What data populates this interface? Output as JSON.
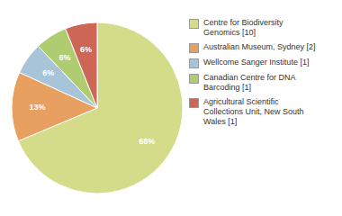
{
  "chart_data": {
    "type": "pie",
    "categories": [
      "Centre for Biodiversity\nGenomics [10]",
      "Australian Museum, Sydney [2]",
      "Wellcome Sanger Institute [1]",
      "Canadian Centre for DNA\nBarcoding [1]",
      "Agricultural Scientific\nCollections Unit, New South\nWales [1]"
    ],
    "values": [
      68,
      13,
      6,
      6,
      6
    ],
    "value_labels": [
      "68%",
      "13%",
      "6%",
      "6%",
      "6%"
    ],
    "colors": [
      "#d4dc8a",
      "#e8a060",
      "#a8c4d8",
      "#b0cc70",
      "#cc6655"
    ],
    "data_labels": true,
    "legend": "right"
  }
}
